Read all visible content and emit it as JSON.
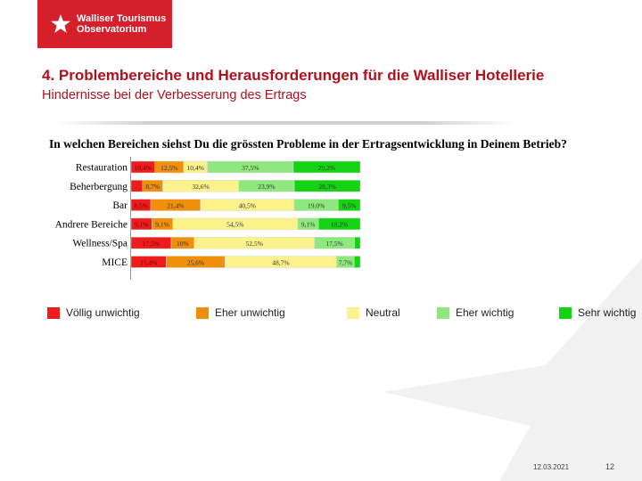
{
  "logo": {
    "line1": "Walliser Tourismus",
    "line2": "Observatorium"
  },
  "header": {
    "title": "4. Problembereiche und Herausforderungen für die Walliser Hotellerie",
    "subtitle": "Hindernisse bei der Verbesserung des Ertrags"
  },
  "footer": {
    "date": "12.03.2021",
    "page": "12"
  },
  "colors": {
    "brand_red": "#d51f2a",
    "series": [
      "#ee1c1c",
      "#f0900a",
      "#fbf28c",
      "#8fe87e",
      "#13d313"
    ]
  },
  "chart_data": {
    "type": "bar",
    "orientation": "horizontal-stacked-100",
    "title": "In welchen Bereichen siehst Du die grössten Probleme in der Ertragsentwicklung in Deinem Betrieb?",
    "categories": [
      "Restauration",
      "Beherbergung",
      "Bar",
      "Andrere Bereiche",
      "Wellness/Spa",
      "MICE"
    ],
    "series": [
      {
        "name": "Völlig unwichtig",
        "values": [
          10.4,
          4.9,
          8.5,
          9.1,
          17.5,
          15.4
        ],
        "labels": [
          "10,4%",
          "",
          "8,5%",
          "9,1%",
          "17,5%",
          "15,4%"
        ]
      },
      {
        "name": "Eher unwichtig",
        "values": [
          12.5,
          8.7,
          21.4,
          9.1,
          10.0,
          25.6
        ],
        "labels": [
          "12,5%",
          "8,7%",
          "21,4%",
          "9,1%",
          "10%",
          "25,6%"
        ]
      },
      {
        "name": "Neutral",
        "values": [
          10.4,
          32.6,
          40.5,
          54.5,
          52.5,
          48.7
        ],
        "labels": [
          "10,4%",
          "32,6%",
          "40,5%",
          "54,5%",
          "52,5%",
          "48,7%"
        ]
      },
      {
        "name": "Eher wichtig",
        "values": [
          37.5,
          23.9,
          19.0,
          9.1,
          17.5,
          7.7
        ],
        "labels": [
          "37,5%",
          "23,9%",
          "19,0%",
          "9,1%",
          "17,5%",
          "7,7%"
        ]
      },
      {
        "name": "Sehr wichtig",
        "values": [
          29.2,
          28.3,
          9.5,
          18.2,
          2.5,
          2.6
        ],
        "labels": [
          "29,2%",
          "28,3%",
          "9,5%",
          "18,2%",
          "",
          ""
        ]
      }
    ],
    "xlim": [
      0,
      100
    ],
    "legend": "bottom"
  }
}
